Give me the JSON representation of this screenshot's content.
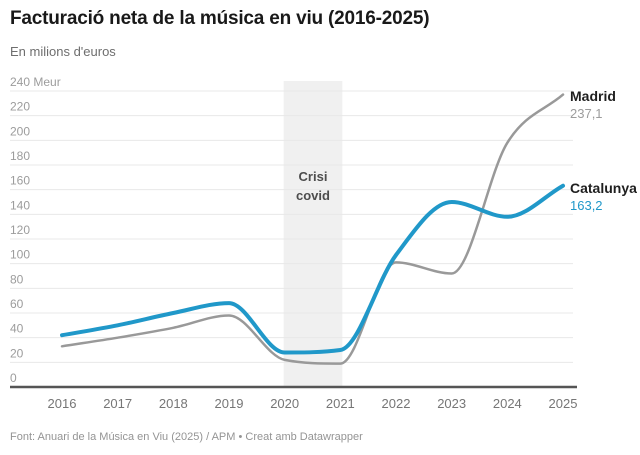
{
  "header": {
    "title": "Facturació neta de la música en viu (2016-2025)",
    "subtitle": "En milions d'euros"
  },
  "footer": {
    "text": "Font: Anuari de la Música en Viu (2025) / APM • Creat amb Datawrapper"
  },
  "annotation": {
    "text": "Crisi covid"
  },
  "end_labels": {
    "madrid": {
      "name": "Madrid",
      "value": "237,1"
    },
    "catalunya": {
      "name": "Catalunya",
      "value": "163,2"
    }
  },
  "colors": {
    "madrid_line": "#999999",
    "catalunya_line": "#2098c9",
    "grid": "#e8e8e8",
    "axis": "#555555",
    "band_fill": "#f0f0f0",
    "y_tick_text": "#9c9c9c",
    "x_tick_text": "#767676"
  },
  "chart_data": {
    "type": "line",
    "title": "Facturació neta de la música en viu (2016-2025)",
    "subtitle": "En milions d'euros",
    "x": [
      2016,
      2017,
      2018,
      2019,
      2020,
      2021,
      2022,
      2023,
      2024,
      2025
    ],
    "series": [
      {
        "name": "Madrid",
        "color": "#999999",
        "end_value_label": "237,1",
        "values": [
          33,
          40,
          48,
          58,
          22,
          19,
          101,
          92,
          198,
          237.1
        ]
      },
      {
        "name": "Catalunya",
        "color": "#2098c9",
        "end_value_label": "163,2",
        "values": [
          42,
          50,
          60,
          68,
          28,
          30,
          107,
          150,
          138,
          163.2
        ]
      }
    ],
    "ylim": [
      0,
      240
    ],
    "ytick_step": 20,
    "y_unit_suffix": " Meur",
    "grid": true,
    "legend_position": "end-of-line-labels",
    "band": {
      "label": "Crisi covid",
      "x_from": 2020,
      "x_to": 2021
    }
  }
}
